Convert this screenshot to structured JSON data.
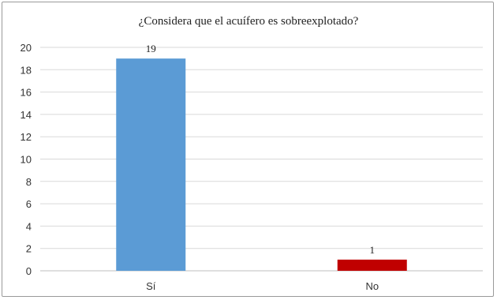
{
  "chart_data": {
    "type": "bar",
    "title": "¿Considera que el acuífero es sobreexplotado?",
    "categories": [
      "Sí",
      "No"
    ],
    "values": [
      19,
      1
    ],
    "colors": [
      "#5b9bd5",
      "#c00000"
    ],
    "data_labels": [
      "19",
      "1"
    ],
    "ylim": [
      0,
      20
    ],
    "yticks": [
      0,
      2,
      4,
      6,
      8,
      10,
      12,
      14,
      16,
      18,
      20
    ],
    "grid": true,
    "legend": "none",
    "xlabel": "",
    "ylabel": ""
  }
}
